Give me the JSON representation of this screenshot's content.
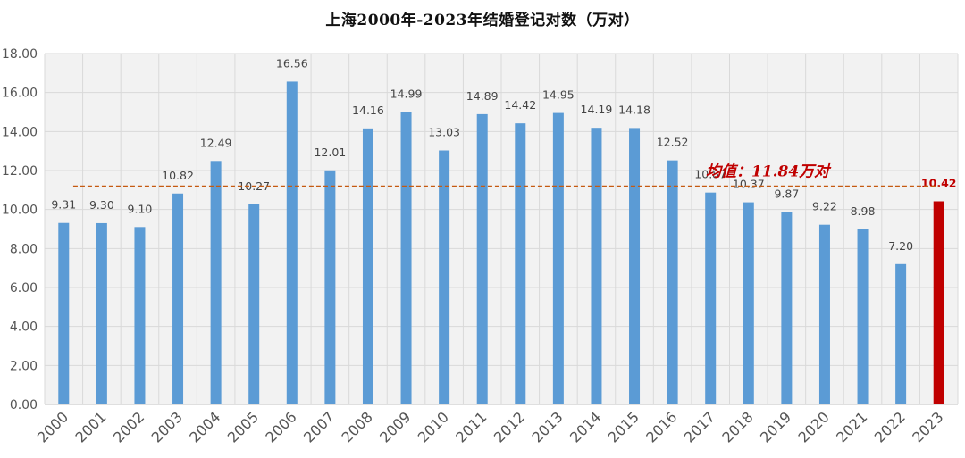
{
  "colors": {
    "bar": "#5b9bd5",
    "highlight_bar": "#c00000",
    "mean_line": "#c55a11",
    "plot_background": "#f2f2f2",
    "grid": "#d9d9d9"
  },
  "chart_data": {
    "type": "bar",
    "title": "上海2000年-2023年结婚登记对数（万对）",
    "xlabel": "",
    "ylabel": "",
    "ylim": [
      0,
      18
    ],
    "yticks": [
      "0.00",
      "2.00",
      "4.00",
      "6.00",
      "8.00",
      "10.00",
      "12.00",
      "14.00",
      "16.00",
      "18.00"
    ],
    "grid": true,
    "categories": [
      "2000",
      "2001",
      "2002",
      "2003",
      "2004",
      "2005",
      "2006",
      "2007",
      "2008",
      "2009",
      "2010",
      "2011",
      "2012",
      "2013",
      "2014",
      "2015",
      "2016",
      "2017",
      "2018",
      "2019",
      "2020",
      "2021",
      "2022",
      "2023"
    ],
    "values": [
      9.31,
      9.3,
      9.1,
      10.82,
      12.49,
      10.27,
      16.56,
      12.01,
      14.16,
      14.99,
      13.03,
      14.89,
      14.42,
      14.95,
      14.19,
      14.18,
      12.52,
      10.87,
      10.37,
      9.87,
      9.22,
      8.98,
      7.2,
      10.42
    ],
    "data_labels": [
      "9.31",
      "9.30",
      "9.10",
      "10.82",
      "12.49",
      "10.27",
      "16.56",
      "12.01",
      "14.16",
      "14.99",
      "13.03",
      "14.89",
      "14.42",
      "14.95",
      "14.19",
      "14.18",
      "12.52",
      "10.87",
      "10.37",
      "9.87",
      "9.22",
      "8.98",
      "7.20",
      "10.42"
    ],
    "highlight_category": "2023",
    "mean_line": {
      "value": 11.84,
      "label": "均值：11.84万对"
    }
  }
}
